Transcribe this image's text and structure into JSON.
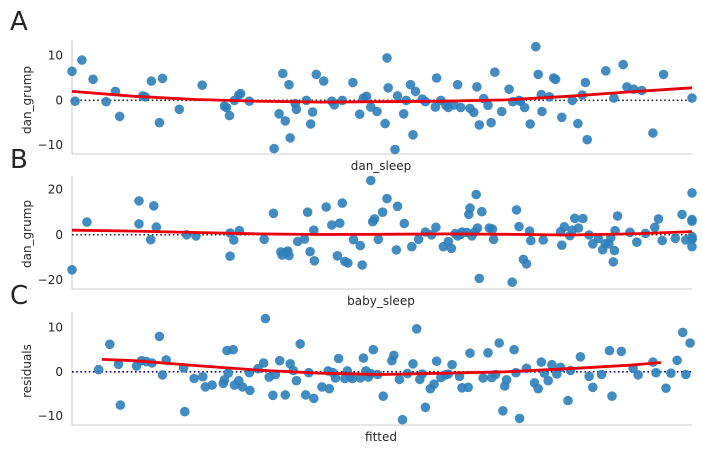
{
  "chart_data": [
    {
      "panel_label": "A",
      "type": "scatter",
      "xlabel": "dan_sleep",
      "ylabel": "dan_grump",
      "ylim": [
        -12,
        13.5
      ],
      "yticks": [
        -10,
        0,
        10
      ],
      "xlim": [
        0,
        100
      ],
      "zero_line_color": "#262626",
      "point_color": "#2f7fba",
      "fit_color": "#e8000b",
      "points": [
        [
          0,
          6.5
        ],
        [
          0.5,
          -0.2
        ],
        [
          1.6,
          9
        ],
        [
          3.4,
          4.7
        ],
        [
          5.5,
          -0.3
        ],
        [
          7,
          2
        ],
        [
          7.7,
          -3.6
        ],
        [
          11.4,
          1
        ],
        [
          11.8,
          0.8
        ],
        [
          12.8,
          4.3
        ],
        [
          14.1,
          -5
        ],
        [
          14.6,
          4.9
        ],
        [
          17.3,
          -2
        ],
        [
          21,
          3.4
        ],
        [
          24.6,
          -1.3
        ],
        [
          24.9,
          -1.6
        ],
        [
          25.4,
          -3.4
        ],
        [
          26.2,
          0
        ],
        [
          26.9,
          1.2
        ],
        [
          27.2,
          1.5
        ],
        [
          28.6,
          -0.2
        ],
        [
          32.6,
          -10.8
        ],
        [
          33.4,
          -3
        ],
        [
          34,
          6
        ],
        [
          34.4,
          -4.6
        ],
        [
          35,
          3.5
        ],
        [
          35.2,
          -8.4
        ],
        [
          36,
          -0.7
        ],
        [
          36.2,
          -2
        ],
        [
          37.8,
          0
        ],
        [
          38.5,
          -5.3
        ],
        [
          38.8,
          -2.6
        ],
        [
          39.4,
          5.8
        ],
        [
          40.6,
          4.3
        ],
        [
          41.9,
          -0.2
        ],
        [
          42.3,
          -1
        ],
        [
          43.6,
          0
        ],
        [
          45.3,
          4
        ],
        [
          46.4,
          -3.1
        ],
        [
          47,
          0.5
        ],
        [
          47.5,
          0.9
        ],
        [
          48.2,
          -1.5
        ],
        [
          49.2,
          -2.5
        ],
        [
          50.5,
          -5.2
        ],
        [
          50.8,
          9.5
        ],
        [
          51,
          2.8
        ],
        [
          52.1,
          -11
        ],
        [
          52.5,
          1
        ],
        [
          53.5,
          -3
        ],
        [
          53.9,
          0
        ],
        [
          54.6,
          3.5
        ],
        [
          55,
          -7.7
        ],
        [
          55.4,
          2
        ],
        [
          56.5,
          0.3
        ],
        [
          57,
          -0.3
        ],
        [
          58.6,
          -1.5
        ],
        [
          58.8,
          5
        ],
        [
          59.5,
          0
        ],
        [
          60.3,
          -1.1
        ],
        [
          60.7,
          -1.6
        ],
        [
          61.6,
          -1
        ],
        [
          62.2,
          3.5
        ],
        [
          62.7,
          -1.6
        ],
        [
          64.2,
          -1.8
        ],
        [
          64.8,
          -2.7
        ],
        [
          65.3,
          3
        ],
        [
          65.7,
          -5.5
        ],
        [
          66.4,
          0.4
        ],
        [
          67.1,
          -1.1
        ],
        [
          67.6,
          -5
        ],
        [
          68.2,
          6.3
        ],
        [
          69.3,
          -2.5
        ],
        [
          70.5,
          2.5
        ],
        [
          71.1,
          -0.3
        ],
        [
          72.1,
          0
        ],
        [
          72.3,
          -0.2
        ],
        [
          73,
          -1.6
        ],
        [
          73.9,
          -5.3
        ],
        [
          74.8,
          12
        ],
        [
          75.2,
          5.8
        ],
        [
          75.7,
          1.3
        ],
        [
          75.8,
          -2.5
        ],
        [
          77,
          0.8
        ],
        [
          77.7,
          5
        ],
        [
          78,
          4.7
        ],
        [
          79,
          -3.8
        ],
        [
          80.7,
          0
        ],
        [
          81.6,
          -5.2
        ],
        [
          82.3,
          1.2
        ],
        [
          82.8,
          4
        ],
        [
          83.1,
          -8.8
        ],
        [
          86.1,
          6.6
        ],
        [
          87.4,
          0.5
        ],
        [
          88.9,
          8
        ],
        [
          89.5,
          3
        ],
        [
          90.6,
          2.5
        ],
        [
          91.9,
          2.2
        ],
        [
          93.7,
          -7.3
        ],
        [
          95.4,
          5.8
        ],
        [
          100,
          0.5
        ]
      ],
      "fit": [
        [
          0,
          2
        ],
        [
          10,
          0.9
        ],
        [
          20,
          0.2
        ],
        [
          30,
          -0.2
        ],
        [
          40,
          -0.4
        ],
        [
          50,
          -0.3
        ],
        [
          60,
          -0.2
        ],
        [
          70,
          0.1
        ],
        [
          80,
          0.9
        ],
        [
          90,
          1.9
        ],
        [
          100,
          2.8
        ]
      ]
    },
    {
      "panel_label": "B",
      "type": "scatter",
      "xlabel": "baby_sleep",
      "ylabel": "dan_grump",
      "ylim": [
        -24,
        26
      ],
      "yticks": [
        -20,
        0,
        20
      ],
      "xlim": [
        0,
        100
      ],
      "zero_line_color": "#262626",
      "point_color": "#2f7fba",
      "fit_color": "#e8000b",
      "points": [
        [
          0,
          -15.5
        ],
        [
          2.4,
          5.6
        ],
        [
          10.8,
          4.8
        ],
        [
          10.8,
          15
        ],
        [
          12.7,
          -2.2
        ],
        [
          13.2,
          12.8
        ],
        [
          13.6,
          3.4
        ],
        [
          18.5,
          0
        ],
        [
          20,
          -0.5
        ],
        [
          25.5,
          0.8
        ],
        [
          25.5,
          -9.5
        ],
        [
          26.1,
          -2.3
        ],
        [
          27,
          1.8
        ],
        [
          31,
          -2
        ],
        [
          32.5,
          9.5
        ],
        [
          33.7,
          -7.6
        ],
        [
          33.9,
          -9
        ],
        [
          34.6,
          -7.7
        ],
        [
          34.8,
          -7.2
        ],
        [
          35,
          -9.2
        ],
        [
          36.4,
          -3
        ],
        [
          37.5,
          -1.9
        ],
        [
          38,
          10
        ],
        [
          38.4,
          -7.5
        ],
        [
          39,
          2
        ],
        [
          39.1,
          -11.5
        ],
        [
          41,
          12.3
        ],
        [
          41.9,
          4.3
        ],
        [
          42.8,
          -9.3
        ],
        [
          43.2,
          5.1
        ],
        [
          43.6,
          14
        ],
        [
          44,
          -11.8
        ],
        [
          44.5,
          -12.5
        ],
        [
          45.4,
          -2.2
        ],
        [
          46.5,
          -4.8
        ],
        [
          46.8,
          -13.4
        ],
        [
          48.2,
          24
        ],
        [
          48.5,
          5.8
        ],
        [
          48.8,
          7
        ],
        [
          49.4,
          -2
        ],
        [
          50.1,
          10
        ],
        [
          50.8,
          16
        ],
        [
          52.3,
          -6.7
        ],
        [
          52.5,
          12.6
        ],
        [
          53.6,
          5
        ],
        [
          54.8,
          -5.3
        ],
        [
          55.9,
          -2
        ],
        [
          57,
          1.2
        ],
        [
          58,
          0
        ],
        [
          58.7,
          3.3
        ],
        [
          59.9,
          -5.3
        ],
        [
          60.7,
          -3
        ],
        [
          61.2,
          -6
        ],
        [
          61.8,
          0.5
        ],
        [
          62.2,
          -0.5
        ],
        [
          62.7,
          0.2
        ],
        [
          62.9,
          1.2
        ],
        [
          63.7,
          1
        ],
        [
          64,
          9
        ],
        [
          64.2,
          11.8
        ],
        [
          64.5,
          -0.5
        ],
        [
          65,
          1.3
        ],
        [
          65.4,
          3
        ],
        [
          65.2,
          17.8
        ],
        [
          65.7,
          -19.3
        ],
        [
          66.1,
          10.2
        ],
        [
          67.3,
          3
        ],
        [
          67.8,
          2.5
        ],
        [
          68,
          -2
        ],
        [
          71,
          -21
        ],
        [
          71.7,
          11
        ],
        [
          72.1,
          3.6
        ],
        [
          72.8,
          -10.9
        ],
        [
          73.3,
          -12.9
        ],
        [
          73.8,
          1.6
        ],
        [
          74,
          -2.6
        ],
        [
          76,
          -2.3
        ],
        [
          78.8,
          1.3
        ],
        [
          79,
          -4.6
        ],
        [
          79.4,
          3.5
        ],
        [
          80.3,
          -0.4
        ],
        [
          80.7,
          2
        ],
        [
          81.1,
          7.3
        ],
        [
          81.7,
          3
        ],
        [
          82.4,
          7.2
        ],
        [
          83.4,
          -0.1
        ],
        [
          84,
          -4
        ],
        [
          84.9,
          -1.6
        ],
        [
          85.6,
          -6.6
        ],
        [
          86,
          -4
        ],
        [
          86.6,
          -4
        ],
        [
          86.9,
          -1.3
        ],
        [
          87.3,
          -12
        ],
        [
          87.5,
          -7
        ],
        [
          87.6,
          1.8
        ],
        [
          88,
          8.3
        ],
        [
          90,
          1.1
        ],
        [
          91.1,
          -3.3
        ],
        [
          92.5,
          0.6
        ],
        [
          94,
          3.3
        ],
        [
          94.6,
          7
        ],
        [
          95.2,
          -2.6
        ],
        [
          97.3,
          -1.6
        ],
        [
          98.4,
          9
        ],
        [
          99,
          -2.3
        ],
        [
          100,
          -0.8
        ],
        [
          100.1,
          -1.9
        ],
        [
          101,
          6.7
        ],
        [
          101.4,
          18.5
        ],
        [
          102,
          -5.3
        ],
        [
          102.5,
          -1.9
        ],
        [
          104.3,
          6
        ]
      ],
      "fit": [
        [
          0,
          2
        ],
        [
          10,
          1.6
        ],
        [
          20,
          1
        ],
        [
          30,
          0.4
        ],
        [
          40,
          0.1
        ],
        [
          50,
          0.2
        ],
        [
          60,
          0.4
        ],
        [
          70,
          0.2
        ],
        [
          80,
          -0.1
        ],
        [
          90,
          0.4
        ],
        [
          100,
          1.4
        ]
      ]
    },
    {
      "panel_label": "C",
      "type": "scatter",
      "xlabel": "fitted",
      "ylabel": "residuals",
      "ylim": [
        -12,
        13.5
      ],
      "yticks": [
        -10,
        0,
        10
      ],
      "xlim": [
        0,
        100
      ],
      "zero_line_color": "#00008b",
      "point_color": "#2f7fba",
      "fit_color": "#e8000b",
      "points": [
        [
          4.3,
          0.5
        ],
        [
          6.1,
          6.2
        ],
        [
          7.5,
          1.7
        ],
        [
          7.8,
          -7.5
        ],
        [
          10.4,
          1.3
        ],
        [
          11.2,
          2.5
        ],
        [
          12,
          2.3
        ],
        [
          12.9,
          2
        ],
        [
          14.1,
          8
        ],
        [
          14.6,
          -0.7
        ],
        [
          15.2,
          2.7
        ],
        [
          18,
          0.9
        ],
        [
          18.2,
          -9
        ],
        [
          19.7,
          -1.5
        ],
        [
          21.1,
          -1.1
        ],
        [
          21.5,
          -3.4
        ],
        [
          22.6,
          -3
        ],
        [
          24.4,
          -2.6
        ],
        [
          24.6,
          -1.8
        ],
        [
          25,
          4.8
        ],
        [
          25.2,
          -0.3
        ],
        [
          26,
          5
        ],
        [
          26.2,
          -3
        ],
        [
          26.9,
          -2
        ],
        [
          27.5,
          -3.4
        ],
        [
          28.6,
          -0.2
        ],
        [
          28.7,
          -4.2
        ],
        [
          30,
          0.7
        ],
        [
          30.9,
          2
        ],
        [
          31.2,
          12
        ],
        [
          31.8,
          -1.2
        ],
        [
          32.4,
          -5.3
        ],
        [
          32.8,
          -0.6
        ],
        [
          33.5,
          2.5
        ],
        [
          34.4,
          -5.2
        ],
        [
          35.2,
          1.8
        ],
        [
          35.7,
          0.3
        ],
        [
          36.2,
          -2
        ],
        [
          36.8,
          6.3
        ],
        [
          37.7,
          -5.2
        ],
        [
          38.2,
          -0.2
        ],
        [
          39,
          -6
        ],
        [
          40.3,
          -3.4
        ],
        [
          41.3,
          0.2
        ],
        [
          41.5,
          -3.8
        ],
        [
          42.1,
          -0.2
        ],
        [
          42.5,
          -1.4
        ],
        [
          43,
          3
        ],
        [
          44,
          -1.5
        ],
        [
          44.4,
          0.2
        ],
        [
          44.8,
          -1
        ],
        [
          45.2,
          -1.5
        ],
        [
          46.5,
          -1.4
        ],
        [
          47,
          3.1
        ],
        [
          47.4,
          0.2
        ],
        [
          47.8,
          -1.2
        ],
        [
          48.2,
          -0.4
        ],
        [
          48.6,
          5
        ],
        [
          49.3,
          -0.6
        ],
        [
          50.2,
          -5.5
        ],
        [
          51.6,
          2.5
        ],
        [
          51.9,
          3.7
        ],
        [
          52.8,
          -1.7
        ],
        [
          53.3,
          -10.8
        ],
        [
          54.1,
          -0.4
        ],
        [
          55,
          1.8
        ],
        [
          55.6,
          9.7
        ],
        [
          56.1,
          -1.7
        ],
        [
          56.5,
          -0.5
        ],
        [
          57,
          -8
        ],
        [
          57.8,
          -3.8
        ],
        [
          58.4,
          -2.8
        ],
        [
          58.8,
          2.4
        ],
        [
          59.5,
          -1.3
        ],
        [
          60.2,
          -0.7
        ],
        [
          60.7,
          -0.5
        ],
        [
          61.3,
          1.6
        ],
        [
          62.5,
          -1
        ],
        [
          62.9,
          -3.6
        ],
        [
          63.9,
          -3.5
        ],
        [
          64.2,
          4.2
        ],
        [
          66.3,
          -1.4
        ],
        [
          67.1,
          4.3
        ],
        [
          67.7,
          -1.3
        ],
        [
          68.3,
          -0.6
        ],
        [
          68.9,
          6.5
        ],
        [
          69.5,
          -8.8
        ],
        [
          69.8,
          -3.2
        ],
        [
          70.1,
          -1.8
        ],
        [
          71.3,
          5
        ],
        [
          71.6,
          -0.2
        ],
        [
          72.2,
          -10.5
        ],
        [
          73.3,
          0.8
        ],
        [
          74.6,
          -2.5
        ],
        [
          75.2,
          -3.8
        ],
        [
          75.7,
          2.2
        ],
        [
          76.2,
          -0.3
        ],
        [
          76.8,
          -2
        ],
        [
          77.4,
          1.6
        ],
        [
          78.2,
          -0.5
        ],
        [
          78.8,
          1
        ],
        [
          80,
          -6.5
        ],
        [
          80.4,
          0.3
        ],
        [
          82,
          3.4
        ],
        [
          83.4,
          -1
        ],
        [
          84,
          -3.5
        ],
        [
          85.4,
          -0.6
        ],
        [
          86.7,
          4.8
        ],
        [
          87.1,
          -5.5
        ],
        [
          88.6,
          4.6
        ],
        [
          90.5,
          0.8
        ],
        [
          91.3,
          -0.7
        ],
        [
          93.7,
          2.2
        ],
        [
          94.2,
          -0.2
        ],
        [
          95.8,
          -3.7
        ],
        [
          96.6,
          -0.3
        ],
        [
          97.6,
          2.6
        ],
        [
          98.5,
          8.9
        ],
        [
          99,
          -0.6
        ],
        [
          99.7,
          6.5
        ]
      ],
      "fit": [
        [
          4.8,
          2.8
        ],
        [
          10,
          2.5
        ],
        [
          20,
          1.4
        ],
        [
          30,
          0.4
        ],
        [
          40,
          -0.3
        ],
        [
          50,
          -0.6
        ],
        [
          60,
          -0.3
        ],
        [
          70,
          0
        ],
        [
          80,
          0.7
        ],
        [
          90,
          1.5
        ],
        [
          95,
          2.1
        ]
      ]
    }
  ]
}
